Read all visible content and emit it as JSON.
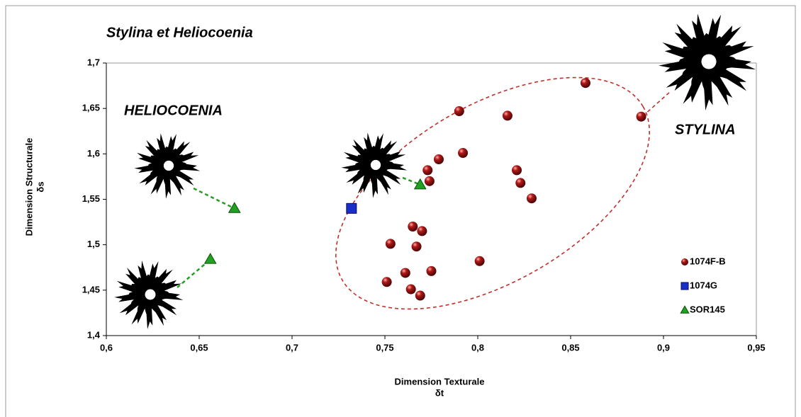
{
  "chart_data": {
    "type": "scatter",
    "title": "Stylina et Heliocoenia",
    "x_label": "Dimension Texturale",
    "x_symbol": "δt",
    "y_label": "Dimension Structurale",
    "y_symbol": "δs",
    "annotations": [
      {
        "text": "HELIOCOENIA",
        "color": "#2e8b2e"
      },
      {
        "text": "STYLINA",
        "color": "#c0302a"
      }
    ],
    "xlim": [
      0.6,
      0.95
    ],
    "xticks": [
      {
        "value": 0.6,
        "label": "0,6"
      },
      {
        "value": 0.65,
        "label": "0,65"
      },
      {
        "value": 0.7,
        "label": "0,7"
      },
      {
        "value": 0.75,
        "label": "0,75"
      },
      {
        "value": 0.8,
        "label": "0,8"
      },
      {
        "value": 0.85,
        "label": "0,85"
      },
      {
        "value": 0.9,
        "label": "0,9"
      },
      {
        "value": 0.95,
        "label": "0,95"
      }
    ],
    "ylim": [
      1.4,
      1.7
    ],
    "yticks": [
      {
        "value": 1.4,
        "label": "1,4"
      },
      {
        "value": 1.45,
        "label": "1,45"
      },
      {
        "value": 1.5,
        "label": "1,5"
      },
      {
        "value": 1.55,
        "label": "1,55"
      },
      {
        "value": 1.6,
        "label": "1,6"
      },
      {
        "value": 1.65,
        "label": "1,65"
      },
      {
        "value": 1.7,
        "label": "1,7"
      }
    ],
    "series": [
      {
        "name": "1074F-B",
        "color": "#b01818",
        "marker": "circle",
        "x": [
          0.858,
          0.888,
          0.79,
          0.816,
          0.792,
          0.779,
          0.773,
          0.774,
          0.821,
          0.823,
          0.829,
          0.765,
          0.77,
          0.767,
          0.753,
          0.801,
          0.775,
          0.761,
          0.751,
          0.764,
          0.769
        ],
        "values": [
          1.678,
          1.641,
          1.647,
          1.642,
          1.601,
          1.594,
          1.582,
          1.57,
          1.582,
          1.568,
          1.551,
          1.52,
          1.515,
          1.498,
          1.501,
          1.482,
          1.471,
          1.469,
          1.459,
          1.451,
          1.444
        ]
      },
      {
        "name": "1074G",
        "color": "#1a2fc8",
        "marker": "square",
        "x": [
          0.732
        ],
        "values": [
          1.54
        ]
      },
      {
        "name": "SOR145",
        "color": "#22a022",
        "marker": "triangle",
        "x": [
          0.669,
          0.656,
          0.769
        ],
        "values": [
          1.54,
          1.484,
          1.566
        ]
      }
    ]
  }
}
